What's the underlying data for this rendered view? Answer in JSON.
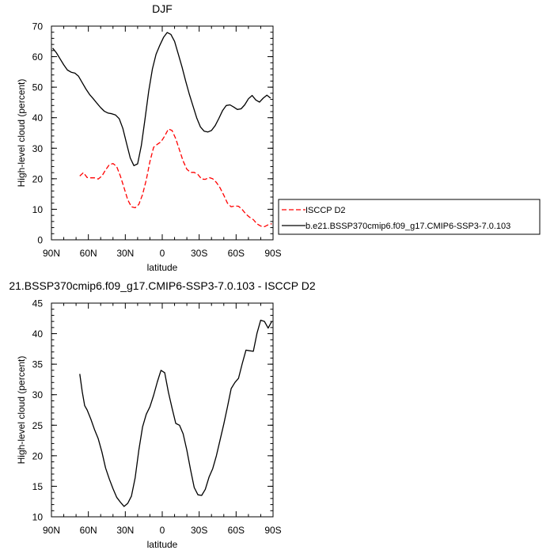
{
  "chart_data": [
    {
      "type": "line",
      "title": "DJF",
      "xlabel": "latitude",
      "ylabel": "High-level cloud (percent)",
      "xlim": [
        90,
        -90
      ],
      "ylim": [
        0,
        70
      ],
      "xticks": [
        90,
        60,
        30,
        0,
        -30,
        -60,
        -90
      ],
      "xtick_labels": [
        "90N",
        "60N",
        "30N",
        "0",
        "30S",
        "60S",
        "90S"
      ],
      "yticks": [
        0,
        10,
        20,
        30,
        40,
        50,
        60,
        70
      ],
      "ytick_labels": [
        "0",
        "10",
        "20",
        "30",
        "40",
        "50",
        "60",
        "70"
      ],
      "legend_position": "right",
      "series": [
        {
          "name": "ISCCP D2",
          "color": "#ff0000",
          "style": "dashed",
          "x": [
            67,
            64,
            61,
            58,
            55,
            52,
            49,
            46,
            43,
            40,
            37,
            34,
            31,
            28,
            25,
            22,
            19,
            16,
            13,
            10,
            7,
            4,
            1,
            -2,
            -5,
            -8,
            -11,
            -14,
            -17,
            -20,
            -23,
            -26,
            -29,
            -32,
            -35,
            -38,
            -41,
            -44,
            -47,
            -50,
            -53,
            -56,
            -59,
            -62,
            -65,
            -68,
            -71,
            -74,
            -77,
            -80,
            -83,
            -86,
            -89
          ],
          "y": [
            20.9,
            22.0,
            20.4,
            20.3,
            20.3,
            19.9,
            20.9,
            22.9,
            24.6,
            25.0,
            24.0,
            20.9,
            17.0,
            13.1,
            10.8,
            10.5,
            11.6,
            14.8,
            19.6,
            25.6,
            30.3,
            31.3,
            32.1,
            34.0,
            36.3,
            35.8,
            33.1,
            29.4,
            25.8,
            23.1,
            22.1,
            22.1,
            21.4,
            19.9,
            19.8,
            20.4,
            20.0,
            18.8,
            17.0,
            14.6,
            12.0,
            10.8,
            11.1,
            11.0,
            9.9,
            8.4,
            7.4,
            6.6,
            5.2,
            4.5,
            4.3,
            4.9,
            5.3
          ]
        },
        {
          "name": "b.e21.BSSP370cmip6.f09_g17.CMIP6-SSP3-7.0.103",
          "color": "#000000",
          "style": "solid",
          "x": [
            89,
            86,
            83,
            80,
            77,
            74,
            71,
            68,
            65,
            62,
            59,
            56,
            53,
            50,
            47,
            44,
            41,
            38,
            35,
            32,
            29,
            26,
            23,
            20,
            17,
            14,
            11,
            8,
            5,
            2,
            -1,
            -4,
            -7,
            -10,
            -13,
            -16,
            -19,
            -22,
            -25,
            -28,
            -31,
            -34,
            -37,
            -40,
            -43,
            -46,
            -49,
            -52,
            -55,
            -58,
            -61,
            -64,
            -67,
            -70,
            -73,
            -76,
            -79,
            -82,
            -85,
            -88
          ],
          "y": [
            62.8,
            61.3,
            59.3,
            57.3,
            55.6,
            54.9,
            54.6,
            53.6,
            51.5,
            49.4,
            47.6,
            46.2,
            44.7,
            43.3,
            42.1,
            41.5,
            41.3,
            40.9,
            39.7,
            36.5,
            31.6,
            26.8,
            24.3,
            24.9,
            30.9,
            39.5,
            48.7,
            56.0,
            60.8,
            63.7,
            66.3,
            67.9,
            67.3,
            65.0,
            60.9,
            56.7,
            52.0,
            47.7,
            43.8,
            39.9,
            37.0,
            35.6,
            35.3,
            35.8,
            37.4,
            39.8,
            42.3,
            44.0,
            44.2,
            43.5,
            42.7,
            42.9,
            44.2,
            46.2,
            47.3,
            45.8,
            45.1,
            46.4,
            47.4,
            46.4
          ]
        }
      ]
    },
    {
      "type": "line",
      "title": "21.BSSP370cmip6.f09_g17.CMIP6-SSP3-7.0.103 - ISCCP D2",
      "xlabel": "latitude",
      "ylabel": "High-level cloud (percent)",
      "xlim": [
        90,
        -90
      ],
      "ylim": [
        10,
        45
      ],
      "xticks": [
        90,
        60,
        30,
        0,
        -30,
        -60,
        -90
      ],
      "xtick_labels": [
        "90N",
        "60N",
        "30N",
        "0",
        "30S",
        "60S",
        "90S"
      ],
      "yticks": [
        10,
        15,
        20,
        25,
        30,
        35,
        40,
        45
      ],
      "ytick_labels": [
        "10",
        "15",
        "20",
        "25",
        "30",
        "35",
        "40",
        "45"
      ],
      "series": [
        {
          "color": "#000000",
          "style": "solid",
          "x": [
            67,
            65,
            63,
            61,
            58,
            55,
            52,
            49,
            46,
            43,
            40,
            37,
            34,
            31,
            28,
            25,
            22,
            19,
            16,
            13,
            10,
            7,
            4,
            1,
            -2,
            -5,
            -8,
            -11,
            -14,
            -17,
            -20,
            -23,
            -26,
            -29,
            -32,
            -35,
            -38,
            -41,
            -44,
            -47,
            -50,
            -53,
            -56,
            -59,
            -62,
            -65,
            -68,
            -71,
            -74,
            -77,
            -80,
            -83,
            -86,
            -89
          ],
          "y": [
            33.4,
            30.5,
            28.2,
            27.5,
            26.0,
            24.3,
            22.8,
            20.6,
            18.0,
            16.2,
            14.6,
            13.2,
            12.4,
            11.7,
            12.2,
            13.4,
            16.4,
            20.9,
            24.7,
            26.8,
            28.0,
            29.9,
            32.1,
            34.0,
            33.6,
            30.4,
            27.8,
            25.3,
            25.0,
            23.6,
            20.9,
            17.7,
            14.8,
            13.6,
            13.5,
            14.5,
            16.5,
            17.9,
            20.0,
            22.6,
            25.2,
            28.0,
            31.0,
            32.0,
            32.7,
            35.1,
            37.3,
            37.2,
            37.1,
            40.1,
            42.2,
            42.0,
            40.9,
            42.0
          ]
        }
      ]
    }
  ]
}
